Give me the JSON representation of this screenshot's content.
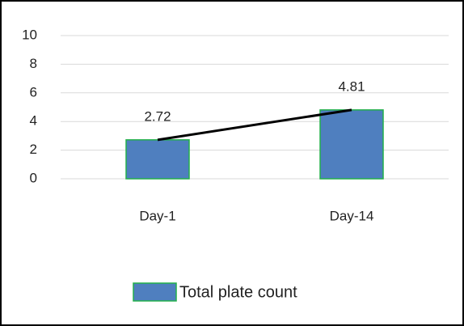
{
  "chart_data": {
    "type": "bar",
    "categories": [
      "Day-1",
      "Day-14"
    ],
    "series": [
      {
        "name": "Total plate count",
        "color": "#4f7fbf",
        "edge_color": "#22b04a",
        "values": [
          2.72,
          4.81
        ]
      }
    ],
    "ylim": [
      0,
      10
    ],
    "yticks": [
      0,
      2,
      4,
      6,
      8,
      10
    ],
    "grid": true,
    "trendline": true,
    "trendline_color": "#000000",
    "data_labels": true,
    "legend": "bottom"
  }
}
